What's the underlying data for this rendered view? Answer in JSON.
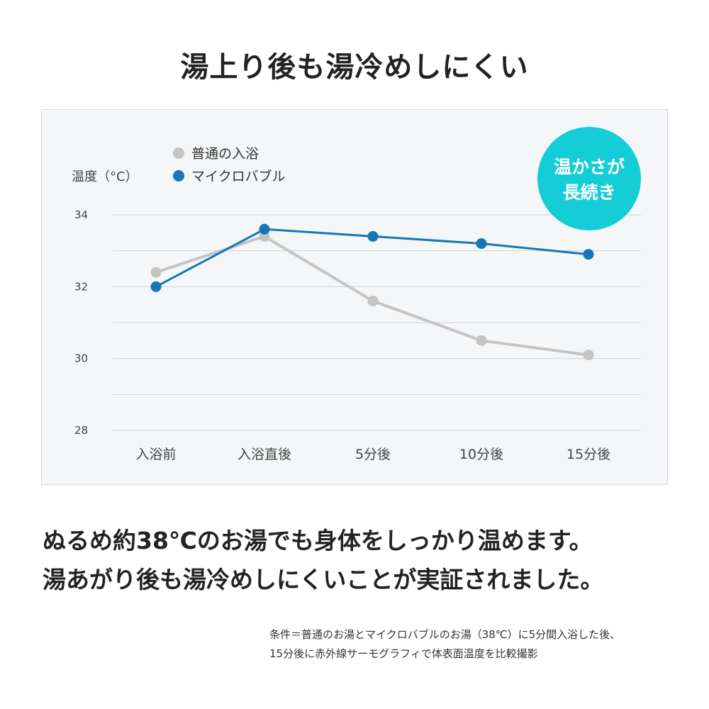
{
  "headline": "湯上り後も湯冷めしにくい",
  "badge": [
    "温かさが",
    "長続き"
  ],
  "body": [
    "ぬるめ約38℃のお湯でも身体をしっかり温めます。",
    "湯あがり後も湯冷めしにくいことが実証されました。"
  ],
  "note": [
    "条件＝普通のお湯とマイクロバブルのお湯（38℃）に5分間入浴した後、",
    "15分後に赤外線サーモグラフィで体表面温度を比較撮影"
  ],
  "colors": {
    "normal": "#c4c4c4",
    "microbubble": "#1577b8",
    "badge": "#14cdd6",
    "grid": "#cfd3d8",
    "axis_text": "#444444"
  },
  "chart_data": {
    "type": "line",
    "ylabel": "温度（°C）",
    "categories": [
      "入浴前",
      "入浴直後",
      "5分後",
      "10分後",
      "15分後"
    ],
    "ylim": [
      28,
      34
    ],
    "yticks": [
      28,
      30,
      32,
      34
    ],
    "ygrid_step": 1,
    "grid": true,
    "legend_position": "top-left",
    "series": [
      {
        "name": "普通の入浴",
        "values": [
          32.4,
          33.4,
          31.6,
          30.5,
          30.1
        ],
        "color": "#c4c4c4"
      },
      {
        "name": "マイクロバブル",
        "values": [
          32.0,
          33.6,
          33.4,
          33.2,
          32.9
        ],
        "color": "#1577b8"
      }
    ]
  }
}
